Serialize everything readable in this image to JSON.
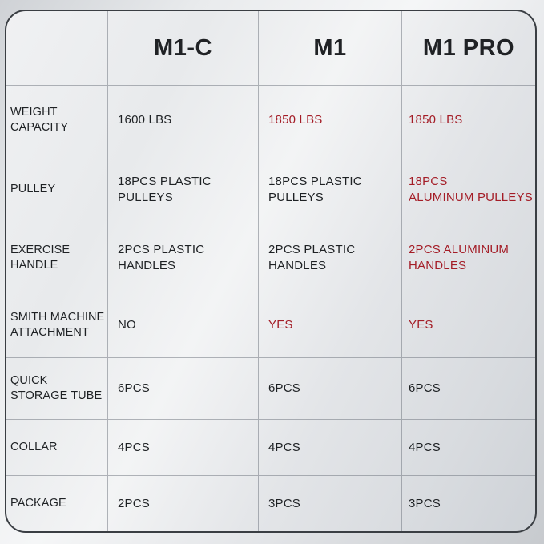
{
  "comparison_table": {
    "column_headers": [
      "M1-C",
      "M1",
      "M1 PRO"
    ],
    "rows": [
      {
        "label": "WEIGHT\nCAPACITY",
        "cells": [
          {
            "text": "1600 LBS",
            "highlighted": false
          },
          {
            "text": "1850 LBS",
            "highlighted": true
          },
          {
            "text": "1850 LBS",
            "highlighted": true
          }
        ]
      },
      {
        "label": "PULLEY",
        "cells": [
          {
            "text": "18PCS PLASTIC\nPULLEYS",
            "highlighted": false
          },
          {
            "text": "18PCS PLASTIC\nPULLEYS",
            "highlighted": false
          },
          {
            "text": "18PCS\nALUMINUM PULLEYS",
            "highlighted": true
          }
        ]
      },
      {
        "label": "EXERCISE\nHANDLE",
        "cells": [
          {
            "text": "2PCS PLASTIC\nHANDLES",
            "highlighted": false
          },
          {
            "text": "2PCS PLASTIC\nHANDLES",
            "highlighted": false
          },
          {
            "text": "2PCS ALUMINUM\nHANDLES",
            "highlighted": true
          }
        ]
      },
      {
        "label": "SMITH MACHINE\nATTACHMENT",
        "cells": [
          {
            "text": "NO",
            "highlighted": false
          },
          {
            "text": "YES",
            "highlighted": true
          },
          {
            "text": "YES",
            "highlighted": true
          }
        ]
      },
      {
        "label": "QUICK\nSTORAGE TUBE",
        "cells": [
          {
            "text": "6PCS",
            "highlighted": false
          },
          {
            "text": "6PCS",
            "highlighted": false
          },
          {
            "text": "6PCS",
            "highlighted": false
          }
        ]
      },
      {
        "label": "COLLAR",
        "cells": [
          {
            "text": "4PCS",
            "highlighted": false
          },
          {
            "text": "4PCS",
            "highlighted": false
          },
          {
            "text": "4PCS",
            "highlighted": false
          }
        ]
      },
      {
        "label": "PACKAGE",
        "cells": [
          {
            "text": "2PCS",
            "highlighted": false
          },
          {
            "text": "3PCS",
            "highlighted": false
          },
          {
            "text": "3PCS",
            "highlighted": false
          }
        ]
      }
    ]
  },
  "colors": {
    "highlight_text": "#a41d27",
    "body_text": "#1e2124",
    "outer_border": "#3a3e43"
  },
  "chart_data": {
    "type": "table",
    "title": "",
    "columns": [
      "",
      "M1-C",
      "M1",
      "M1 PRO"
    ],
    "rows": [
      [
        "WEIGHT CAPACITY",
        "1600 LBS",
        "1850 LBS",
        "1850 LBS"
      ],
      [
        "PULLEY",
        "18PCS PLASTIC PULLEYS",
        "18PCS PLASTIC PULLEYS",
        "18PCS ALUMINUM PULLEYS"
      ],
      [
        "EXERCISE HANDLE",
        "2PCS PLASTIC HANDLES",
        "2PCS PLASTIC HANDLES",
        "2PCS ALUMINUM HANDLES"
      ],
      [
        "SMITH MACHINE ATTACHMENT",
        "NO",
        "YES",
        "YES"
      ],
      [
        "QUICK STORAGE TUBE",
        "6PCS",
        "6PCS",
        "6PCS"
      ],
      [
        "COLLAR",
        "4PCS",
        "4PCS",
        "4PCS"
      ],
      [
        "PACKAGE",
        "2PCS",
        "3PCS",
        "3PCS"
      ]
    ],
    "highlighted_cells_color": "#a41d27",
    "highlighted_cells": [
      [
        "WEIGHT CAPACITY",
        "M1"
      ],
      [
        "WEIGHT CAPACITY",
        "M1 PRO"
      ],
      [
        "PULLEY",
        "M1 PRO"
      ],
      [
        "EXERCISE HANDLE",
        "M1 PRO"
      ],
      [
        "SMITH MACHINE ATTACHMENT",
        "M1"
      ],
      [
        "SMITH MACHINE ATTACHMENT",
        "M1 PRO"
      ]
    ]
  }
}
